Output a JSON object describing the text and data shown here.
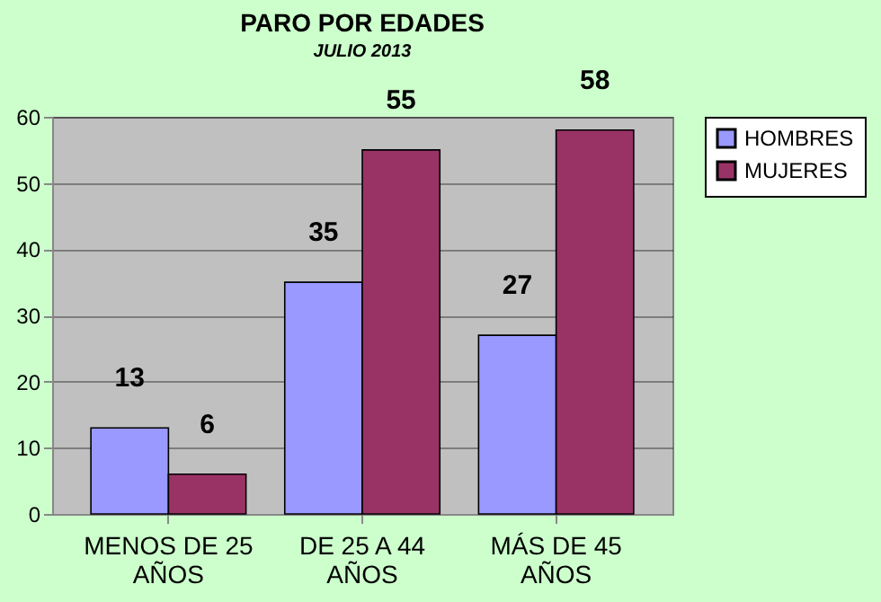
{
  "chart_data": {
    "type": "bar",
    "title": "PARO POR EDADES",
    "subtitle": "JULIO 2013",
    "categories": [
      "MENOS DE 25 AÑOS",
      "DE 25 A 44 AÑOS",
      "MÁS DE 45 AÑOS"
    ],
    "series": [
      {
        "name": "HOMBRES",
        "color": "#9999ff",
        "values": [
          13,
          35,
          27
        ]
      },
      {
        "name": "MUJERES",
        "color": "#993366",
        "values": [
          6,
          55,
          58
        ]
      }
    ],
    "ylim": [
      0,
      60
    ],
    "yticks": [
      0,
      10,
      20,
      30,
      40,
      50,
      60
    ],
    "grid": "y",
    "legend": "right",
    "data_labels": true
  }
}
